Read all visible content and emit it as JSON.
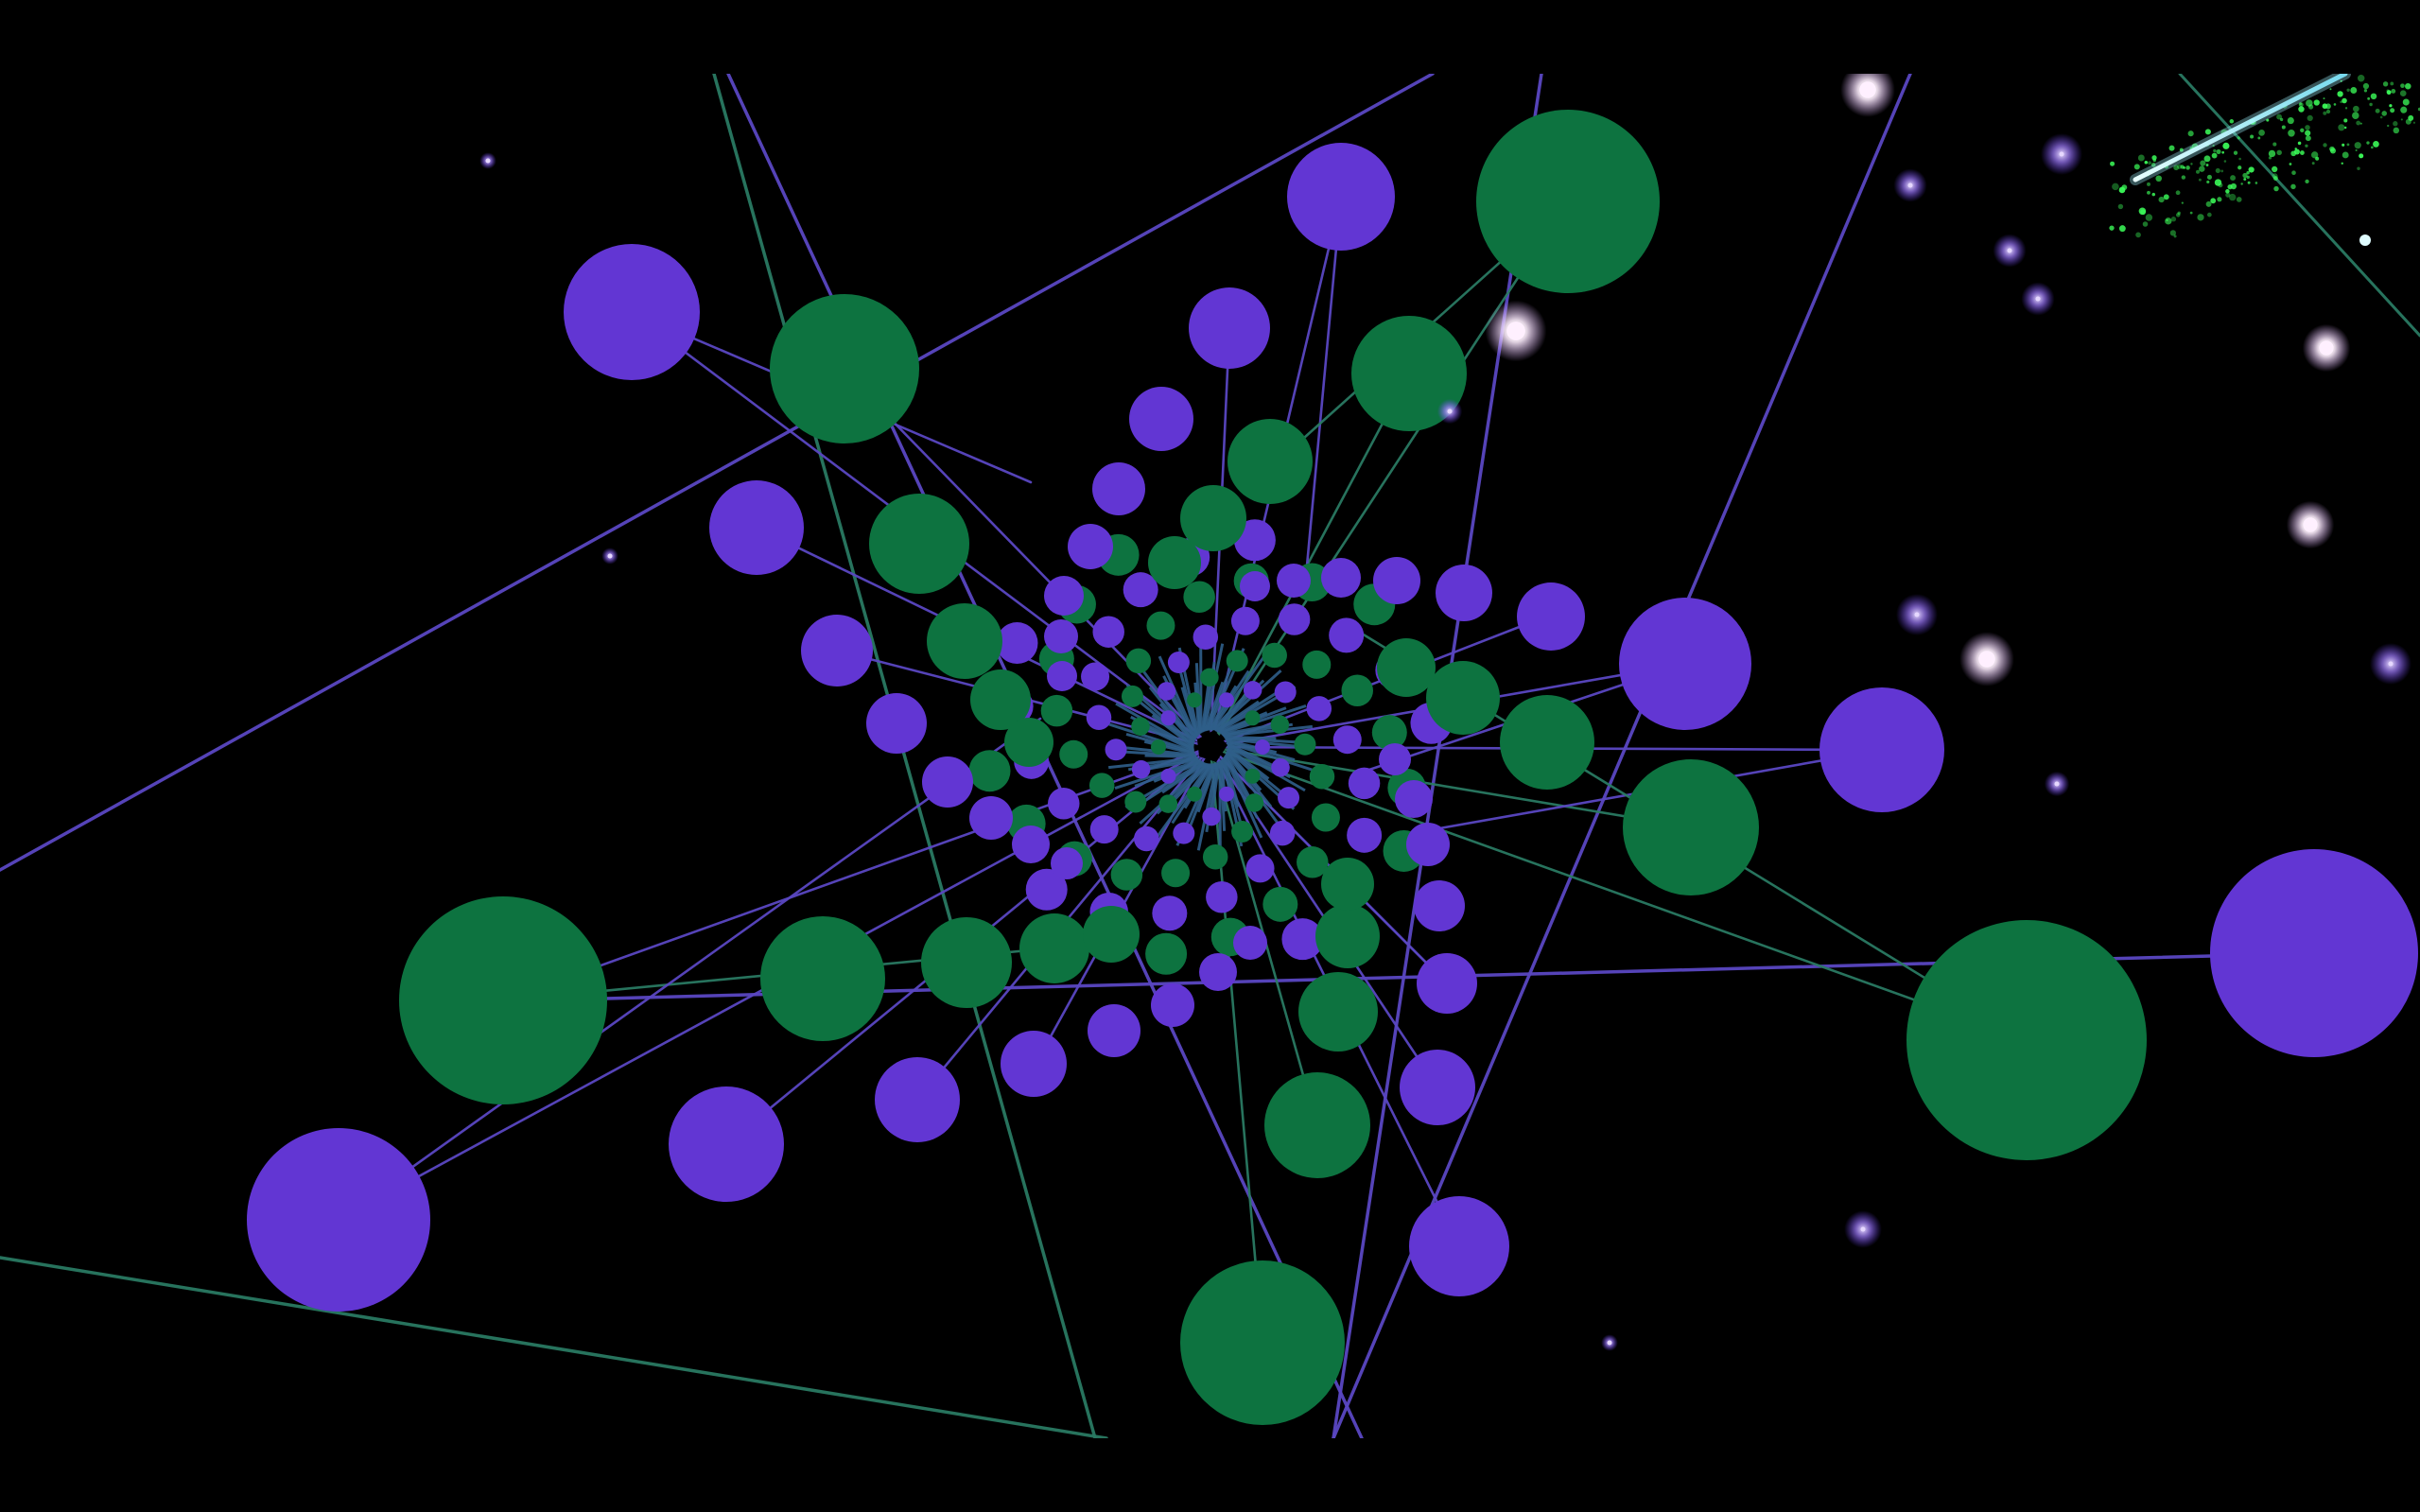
{
  "scene": {
    "description_free": true,
    "palette": {
      "background": "#000000",
      "purple_node": "#6236d3",
      "green_node": "#0d7340",
      "purple_line": "#5a47c2",
      "green_line": "#2a7a63",
      "teal_core": "#2f5f8a",
      "star_white": "#fff0ff",
      "star_violet": "#b48cff",
      "comet_cyan": "#9ff3ff",
      "comet_green": "#3cff5a"
    },
    "icons": {
      "spiral": "spiral-web-icon",
      "stars": "star-glow-icon",
      "comet": "comet-icon"
    }
  }
}
